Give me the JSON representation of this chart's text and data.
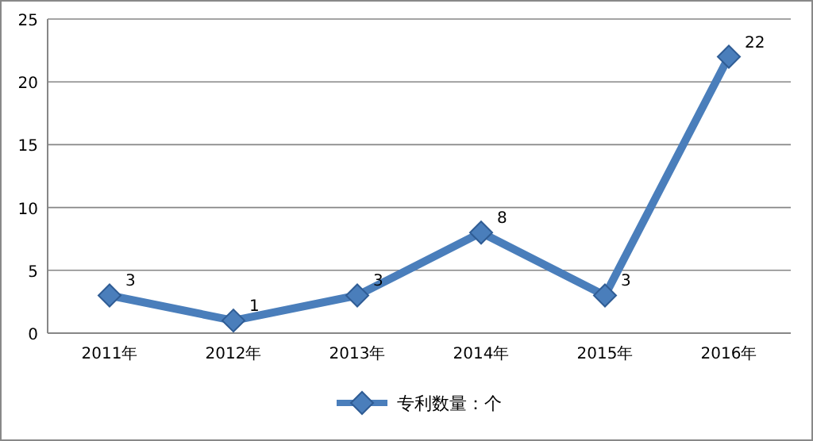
{
  "chart_data": {
    "type": "line",
    "categories": [
      "2011年",
      "2012年",
      "2013年",
      "2014年",
      "2015年",
      "2016年"
    ],
    "series": [
      {
        "name": "专利数量：个",
        "color": "#4a7ebb",
        "values": [
          3,
          1,
          3,
          8,
          3,
          22
        ]
      }
    ],
    "ylim": [
      0,
      25
    ],
    "yticks": [
      0,
      5,
      10,
      15,
      20,
      25
    ],
    "grid": "y",
    "legend": "bottom",
    "marker": "diamond",
    "line_style": "solid",
    "data_labels": true
  }
}
